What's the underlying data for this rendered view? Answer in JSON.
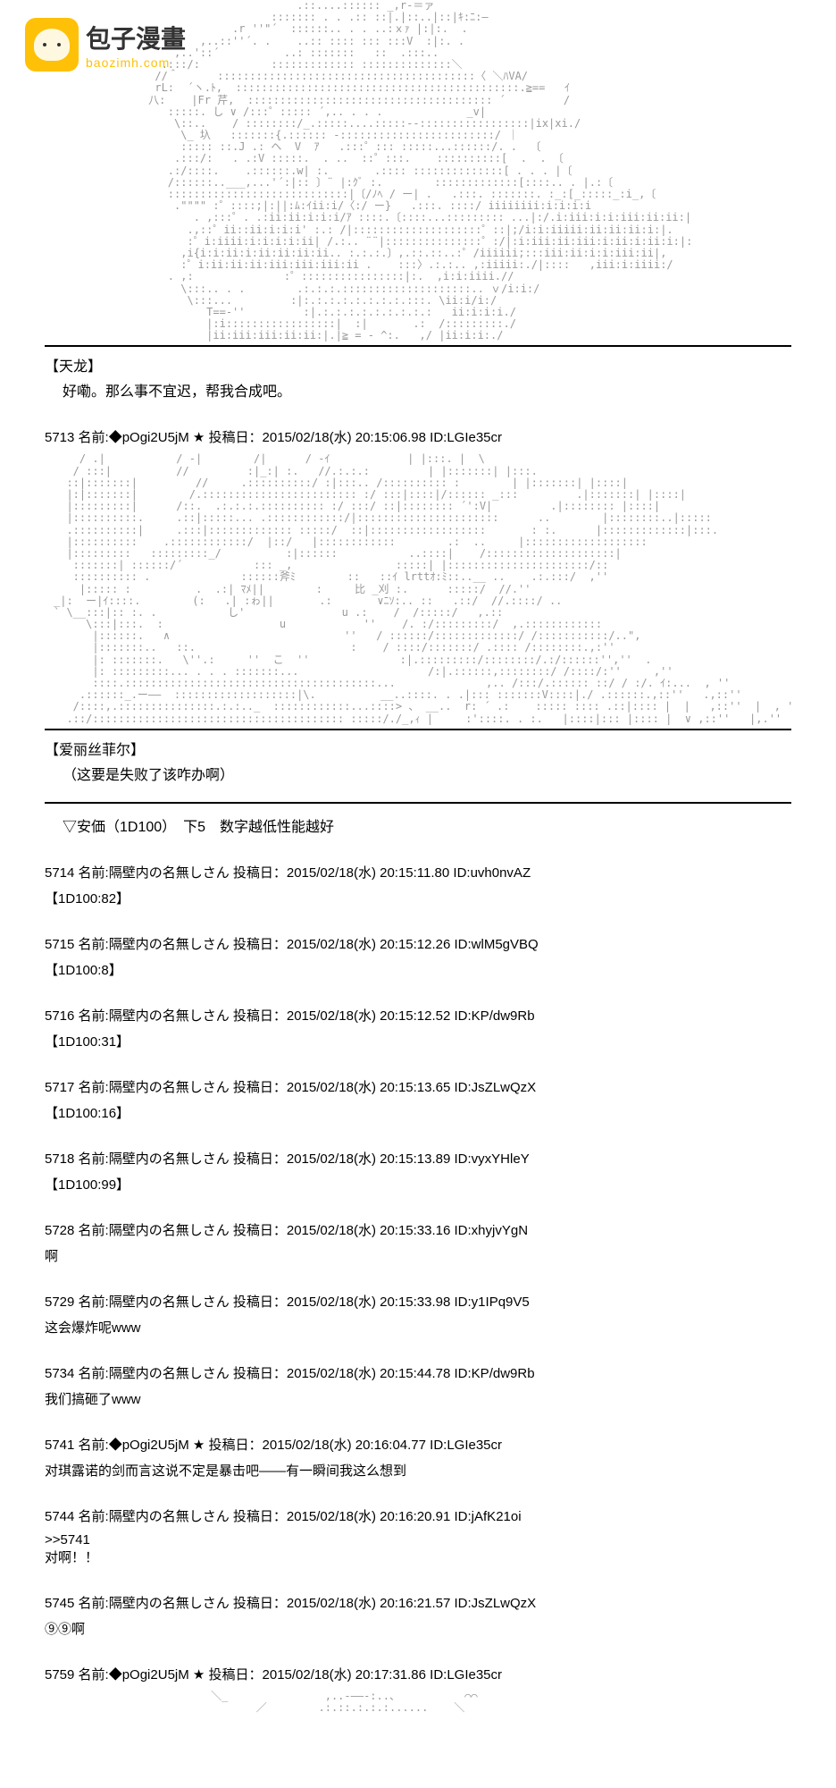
{
  "logo": {
    "title": "包子漫畫",
    "subtitle": "baozimh.com"
  },
  "ascii1": "                            .::....:::::: _,r‐＝ァ\n                        ::::::: . . .:: ::|.|::..|::|ｷ:ﾆ:—\n                  .r ''\"´  ::::::.. . . ..:ｘｧ |:|:.  .\n             ,..::''´. .    ..:: :::: ::: :::V  :|:. .\n         ,..'::´          ..: :::::::   ::  .:::..\n       .:::/:           ::::::::::::: ::::::::::::::＼\n      //＾      ::::::::::::::::::::::::::::::::::::::::〈 ＼ﾊVA/\n      rL:  ´ヽ.ﾄ,  ::::::::::::::::::::::::::::::::::::::::::::.≧==   ｲ\n     八:    |Fr 芹,  :::::::::::::::::::::::::::::::::::::: ´         /\n        :::::. し ∨ /:::゜::::: ´,.. . . .             _v|\n         \\::..    / ::::::::/_.:::::....:::::-‐:::::::::::::::::|ix|xi./\n          \\_ 圦   :::::::{.:::::: -::::::::::::::::::::::::/ ｜\n          ::::: ::.J .: ヘ  V  ｱ   .:::゜::: :::::...::::::/. .  〔\n         .:::/:   . .:V :::::.  . ..  ::゜:::.    ::::::::::[  .  . 〔\n        .:/::::.    .::::::.w| :.       .:::: ::::::::::::::[ . . . |〔\n        /::::::..___,...'´:|:: 〕¨ |:ｸﾞ :.        :::::::::::::[::::.. . |.:〔\n        ::::::::::::::::::::::::::::|〔/ﾉﾍ / ー| .   .:::. :::::::. :_:[_:::::_:i_,〔\n         .\"\"\"\" :゜::::;|:||:ﾑ:ｲii:i/〈:/ ー}   .:::. ::::/ iiiiiiii:i:i:i:i\n            . ,:::゜. .:ii:ii:i:i:i/ｱ ::::.〔::::...::::::::: ...|:/.i:iii:i:i:iii:ii:ii:|\n           .,::゜ii::ii:i:i:i' :.: /|::::::::::::::::::::゜::|;/i:i:iiiii:ii:ii:ii:i:|.\n           :゜i:iiii:i:i:i:i:ii| /.:.. ¨¨|:::::::::::::::゜:/|:i:iii:ii:iii:i:ii:i:ii:i:|:\n          ,i{i:i:ii:i:ii:ii:ii:ii.. :.:.:.〕,.::.::..:゜/iiiiii;:::iii:ii:i:i:iii:ii|,\n          :゜i:ii:ii:ii:iii:iii:iii:ii .    :::〉.:.:.. ,:iiiii:./|::::   ,iii:i:iiii:/\n        . ,:              :゜::::::::::::::::|:.  ,i:i:iiii.// \n          \\:::.. . .        .:.:.:.::::::::::::::::::::.. ｖ/i:i:/\n           \\:::...         :|:.:.:.:.:.:.:.:.:::. \\ii:i/i:/\n              T==-''         :|.:.:.:.:.:.:.:.:.:   ii:i:i:i./\n              |:i:::::::::::::::::|  :|       .:  /:::::::::./\n              |ii:iii:iii:ii:ii:|.|≧ = - ^:.   ,/ |ii:i:i:./",
  "block1": {
    "speaker": "【天龙】",
    "speech": "好嘞。那么事不宜迟，帮我合成吧。"
  },
  "post5713": {
    "header": "5713 名前:◆pOgi2U5jM ★ 投稿日：2015/02/18(水) 20:15:06.98 ID:LGIe35cr"
  },
  "ascii2": "    / .|           / -|        /|      / -ｲ            | |:::. |  \\\n   / :::|          //         :|_:| :.   //.:.:.:         | |:::::::| |:::.\n  ::|:::::::|         //     .::::::::::/ :|:::.. /:::::::::: :        | |:::::::| |::::|\n  |:|:::::::|        /.:::::::::::::::::::::::: :/ :::|::::|/:::::: _:::         .|:::::::| |::::|\n  |:::::::::|      /::.  .:.:.:.:::::::::: :/ :::/ ::|:::::::: ´':V|         .|:::::::: |::::|\n  |::::::::::.     .::|:::::... .::::::::::::/|::::::::::::::::::::::      ..        |::::::::..|:::::\n  .::::::::::|     .:::|::::::::::::: :::::/  ::|::::::::::::::::::       : :.      |:::::::::::::|:::.\n  |::::::::::    .::::::::::::/  |::/   |::::::::::::        .:  ..     |:::::::::::::::::::\n  |:::::::::   :::::::::_/          :|::::::           ..::::|    /::::::::::::::::::::|\n   :::::::| ::::::/´           ::: _,                :::::| |::::::::::::::::::::::/::\n   :::::::::: .              ::::::斧ﾐ        ::   ::ｲ lrttｵ:ﾐ::..__ ..    .:.:::/  ,''\n    |::::: :          .  .:| ﾏﾒ||        :     比 _刈 :.      :::::/  //.''\n_|:  ー|ｲ::::.        (:   .| :ゎ||       .:       ∨ﾆｿ:.. ::   .::/  //.::::/ ..\n` \\__:::|:: :. .           し'               u .:    /  /:::::/   ,.::\n     \\:::|:::.  :                  u            ''    /. :/:::::::::/  ,.::::::::::::\n      |::::::.   ∧                           ''   / ::::::/:::::::::::::/ /:::::::::::/..\", \n      |:::::::..   ::.                        :    / ::::/:::::::/ .:::: /::::::::.,:''  \n      |: :::::::.   \\''.:     ''  こ  ''              :|.:::::::::/::::::::/.:/::::::'',''  . \n      |: :::::::::... . . . :::::::...                    /:|.::::::,::::::::/ /::::/:''     ,''\n      ::::.:::::::::::::::::::::::::::::::::::::::...              ,.. /:::/.:::::: ::/ / :/. ｲ:...  , ''\n    .::::::_.ー――  :::::::::::::::::::|\\.          __..::::. . .|::: :::::::V::::|./ .::::::.,::''   .,::''\n   /::::,.:::::::::::::::.:.:.._  ::::::::::::...::::> 、 __..  r: ´ .:    ::::: :::: .::|:::: |  |   ,::''  |  , '\n  .::/::::::::::::::::::::::::::::::::::::::: :::::/./_,ｨ |     :'::::. . :.   |::::|::: |:::: |  ∨ ,::''   |,.''",
  "block2": {
    "speaker": "【爱丽丝菲尔】",
    "speech": "（这要是失败了该咋办啊）"
  },
  "anka": "▽安価（1D100）　下5　数字越低性能越好",
  "posts": [
    {
      "header": "5714 名前:隔壁内の名無しさん 投稿日：2015/02/18(水) 20:15:11.80 ID:uvh0nvAZ",
      "body": "【1D100:82】"
    },
    {
      "header": "5715 名前:隔壁内の名無しさん 投稿日：2015/02/18(水) 20:15:12.26 ID:wlM5gVBQ",
      "body": "【1D100:8】"
    },
    {
      "header": "5716 名前:隔壁内の名無しさん 投稿日：2015/02/18(水) 20:15:12.52 ID:KP/dw9Rb",
      "body": "【1D100:31】"
    },
    {
      "header": "5717 名前:隔壁内の名無しさん 投稿日：2015/02/18(水) 20:15:13.65 ID:JsZLwQzX",
      "body": "【1D100:16】"
    },
    {
      "header": "5718 名前:隔壁内の名無しさん 投稿日：2015/02/18(水) 20:15:13.89 ID:vyxYHleY",
      "body": "【1D100:99】"
    },
    {
      "header": "5728 名前:隔壁内の名無しさん 投稿日：2015/02/18(水) 20:15:33.16 ID:xhyjvYgN",
      "body": "啊"
    },
    {
      "header": "5729 名前:隔壁内の名無しさん 投稿日：2015/02/18(水) 20:15:33.98 ID:y1IPq9V5",
      "body": "这会爆炸呢www"
    },
    {
      "header": "5734 名前:隔壁内の名無しさん 投稿日：2015/02/18(水) 20:15:44.78 ID:KP/dw9Rb",
      "body": "我们搞砸了www"
    },
    {
      "header": "5741 名前:◆pOgi2U5jM ★ 投稿日：2015/02/18(水) 20:16:04.77 ID:LGIe35cr",
      "body": "对琪露诺的剑而言这说不定是暴击吧——有一瞬间我这么想到"
    },
    {
      "header": "5744 名前:隔壁内の名無しさん 投稿日：2015/02/18(水) 20:16:20.91 ID:jAfK21oi",
      "body": ">>5741\n对啊！！"
    },
    {
      "header": "5745 名前:隔壁内の名無しさん 投稿日：2015/02/18(水) 20:16:21.57 ID:JsZLwQzX",
      "body": "⑨⑨啊"
    },
    {
      "header": "5759 名前:◆pOgi2U5jM ★ 投稿日：2015/02/18(水) 20:17:31.86 ID:LGIe35cr",
      "body": ""
    }
  ],
  "ascii3": "     ＼_               ,..-――-:..、          ⌒⌒\n            ／        .:.::.:.:.:......    ＼"
}
